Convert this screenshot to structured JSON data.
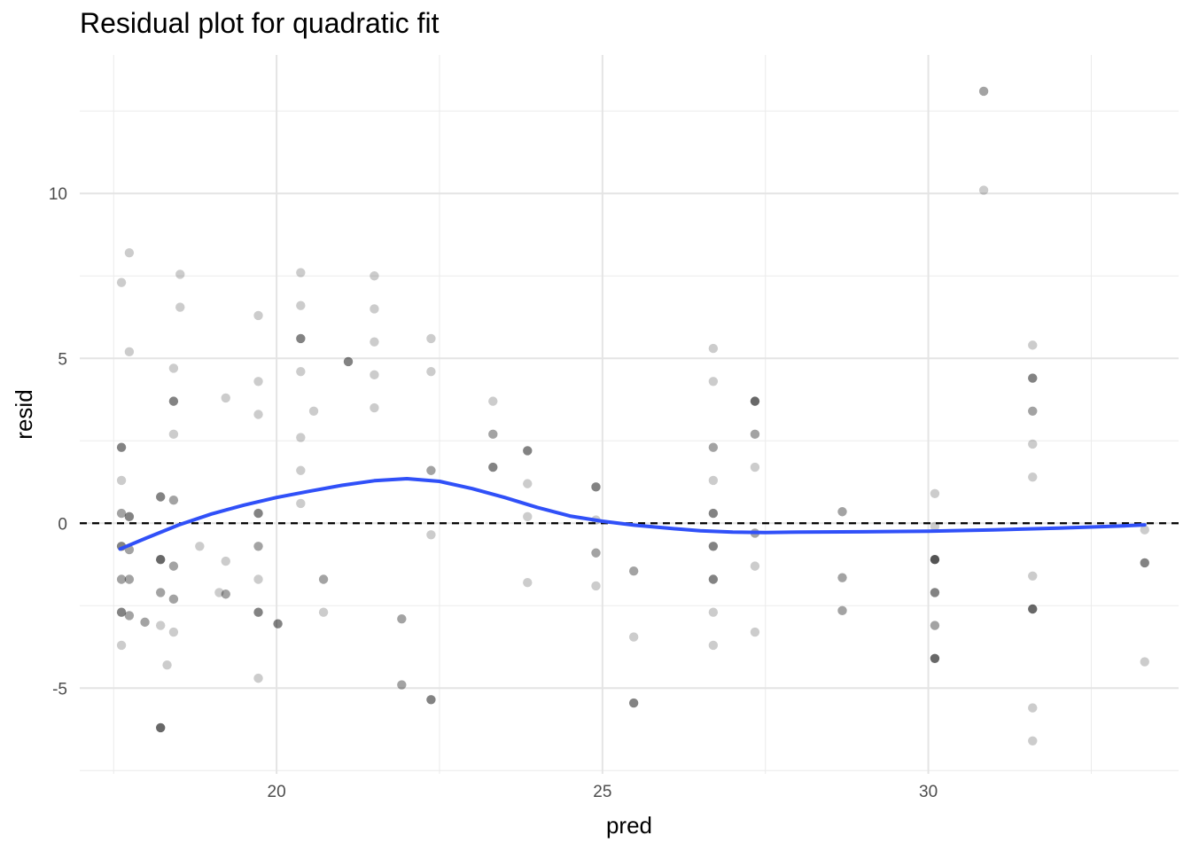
{
  "chart_data": {
    "type": "scatter",
    "title": "Residual plot for quadratic fit",
    "xlabel": "pred",
    "ylabel": "resid",
    "xlim": [
      16.98,
      33.84
    ],
    "ylim": [
      -7.6,
      14.2
    ],
    "x_ticks": [
      20,
      25,
      30
    ],
    "y_ticks": [
      -5,
      0,
      5,
      10
    ],
    "x_tick_labels": [
      "20",
      "25",
      "30"
    ],
    "y_tick_labels": [
      "-5",
      "0",
      "5",
      "10"
    ],
    "grid": true,
    "point_color": "#000000",
    "point_opacity": 0.2,
    "smooth_color": "#3050f8",
    "reference_line": {
      "y": 0,
      "style": "dashed",
      "color": "#000000"
    },
    "points": [
      {
        "x": 17.62,
        "y": 7.3,
        "n": 1
      },
      {
        "x": 17.62,
        "y": 2.3,
        "n": 3
      },
      {
        "x": 17.62,
        "y": 1.3,
        "n": 1
      },
      {
        "x": 17.62,
        "y": 0.3,
        "n": 2
      },
      {
        "x": 17.62,
        "y": -0.7,
        "n": 3
      },
      {
        "x": 17.62,
        "y": -1.7,
        "n": 2
      },
      {
        "x": 17.62,
        "y": -2.7,
        "n": 3
      },
      {
        "x": 17.62,
        "y": -3.7,
        "n": 1
      },
      {
        "x": 17.74,
        "y": 8.2,
        "n": 1
      },
      {
        "x": 17.74,
        "y": 5.2,
        "n": 1
      },
      {
        "x": 17.74,
        "y": 0.2,
        "n": 3
      },
      {
        "x": 17.74,
        "y": -0.8,
        "n": 2
      },
      {
        "x": 17.74,
        "y": -1.7,
        "n": 2
      },
      {
        "x": 17.74,
        "y": -2.8,
        "n": 2
      },
      {
        "x": 17.98,
        "y": -3.0,
        "n": 2
      },
      {
        "x": 18.22,
        "y": 0.8,
        "n": 3
      },
      {
        "x": 18.22,
        "y": -1.1,
        "n": 4
      },
      {
        "x": 18.22,
        "y": -2.1,
        "n": 2
      },
      {
        "x": 18.22,
        "y": -3.1,
        "n": 1
      },
      {
        "x": 18.22,
        "y": -6.2,
        "n": 4
      },
      {
        "x": 18.32,
        "y": -4.3,
        "n": 1
      },
      {
        "x": 18.42,
        "y": 4.7,
        "n": 1
      },
      {
        "x": 18.42,
        "y": 3.7,
        "n": 3
      },
      {
        "x": 18.42,
        "y": 2.7,
        "n": 1
      },
      {
        "x": 18.42,
        "y": 0.7,
        "n": 2
      },
      {
        "x": 18.42,
        "y": -1.3,
        "n": 2
      },
      {
        "x": 18.42,
        "y": -2.3,
        "n": 2
      },
      {
        "x": 18.42,
        "y": -3.3,
        "n": 1
      },
      {
        "x": 18.52,
        "y": 7.55,
        "n": 1
      },
      {
        "x": 18.52,
        "y": 6.55,
        "n": 1
      },
      {
        "x": 18.82,
        "y": -0.7,
        "n": 1
      },
      {
        "x": 19.12,
        "y": -2.1,
        "n": 1
      },
      {
        "x": 19.22,
        "y": 3.8,
        "n": 1
      },
      {
        "x": 19.22,
        "y": -1.15,
        "n": 1
      },
      {
        "x": 19.22,
        "y": -2.15,
        "n": 2
      },
      {
        "x": 19.72,
        "y": 6.3,
        "n": 1
      },
      {
        "x": 19.72,
        "y": 4.3,
        "n": 1
      },
      {
        "x": 19.72,
        "y": 3.3,
        "n": 1
      },
      {
        "x": 19.72,
        "y": 0.3,
        "n": 3
      },
      {
        "x": 19.72,
        "y": -0.7,
        "n": 2
      },
      {
        "x": 19.72,
        "y": -1.7,
        "n": 1
      },
      {
        "x": 19.72,
        "y": -2.7,
        "n": 3
      },
      {
        "x": 19.72,
        "y": -4.7,
        "n": 1
      },
      {
        "x": 20.02,
        "y": -3.05,
        "n": 3
      },
      {
        "x": 20.37,
        "y": 7.6,
        "n": 1
      },
      {
        "x": 20.37,
        "y": 6.6,
        "n": 1
      },
      {
        "x": 20.37,
        "y": 5.6,
        "n": 3
      },
      {
        "x": 20.37,
        "y": 4.6,
        "n": 1
      },
      {
        "x": 20.37,
        "y": 2.6,
        "n": 1
      },
      {
        "x": 20.37,
        "y": 1.6,
        "n": 1
      },
      {
        "x": 20.37,
        "y": 0.6,
        "n": 1
      },
      {
        "x": 20.57,
        "y": 3.4,
        "n": 1
      },
      {
        "x": 20.72,
        "y": -1.7,
        "n": 2
      },
      {
        "x": 20.72,
        "y": -2.7,
        "n": 1
      },
      {
        "x": 21.1,
        "y": 4.9,
        "n": 3
      },
      {
        "x": 21.5,
        "y": 7.5,
        "n": 1
      },
      {
        "x": 21.5,
        "y": 6.5,
        "n": 1
      },
      {
        "x": 21.5,
        "y": 5.5,
        "n": 1
      },
      {
        "x": 21.5,
        "y": 4.5,
        "n": 1
      },
      {
        "x": 21.5,
        "y": 3.5,
        "n": 1
      },
      {
        "x": 21.92,
        "y": -2.9,
        "n": 2
      },
      {
        "x": 21.92,
        "y": -4.9,
        "n": 2
      },
      {
        "x": 22.37,
        "y": 5.6,
        "n": 1
      },
      {
        "x": 22.37,
        "y": 4.6,
        "n": 1
      },
      {
        "x": 22.37,
        "y": 1.6,
        "n": 2
      },
      {
        "x": 22.37,
        "y": -0.35,
        "n": 1
      },
      {
        "x": 22.37,
        "y": -5.35,
        "n": 3
      },
      {
        "x": 23.32,
        "y": 3.7,
        "n": 1
      },
      {
        "x": 23.32,
        "y": 2.7,
        "n": 2
      },
      {
        "x": 23.32,
        "y": 1.7,
        "n": 3
      },
      {
        "x": 23.85,
        "y": 2.2,
        "n": 3
      },
      {
        "x": 23.85,
        "y": 1.2,
        "n": 1
      },
      {
        "x": 23.85,
        "y": 0.2,
        "n": 1
      },
      {
        "x": 23.85,
        "y": -1.8,
        "n": 1
      },
      {
        "x": 24.9,
        "y": 1.1,
        "n": 3
      },
      {
        "x": 24.9,
        "y": 0.1,
        "n": 1
      },
      {
        "x": 24.9,
        "y": -0.9,
        "n": 2
      },
      {
        "x": 24.9,
        "y": -1.9,
        "n": 1
      },
      {
        "x": 25.48,
        "y": -1.45,
        "n": 2
      },
      {
        "x": 25.48,
        "y": -3.45,
        "n": 1
      },
      {
        "x": 25.48,
        "y": -5.45,
        "n": 3
      },
      {
        "x": 26.7,
        "y": 5.3,
        "n": 1
      },
      {
        "x": 26.7,
        "y": 4.3,
        "n": 1
      },
      {
        "x": 26.7,
        "y": 2.3,
        "n": 2
      },
      {
        "x": 26.7,
        "y": 1.3,
        "n": 1
      },
      {
        "x": 26.7,
        "y": 0.3,
        "n": 3
      },
      {
        "x": 26.7,
        "y": -0.7,
        "n": 3
      },
      {
        "x": 26.7,
        "y": -1.7,
        "n": 3
      },
      {
        "x": 26.7,
        "y": -2.7,
        "n": 1
      },
      {
        "x": 26.7,
        "y": -3.7,
        "n": 1
      },
      {
        "x": 27.34,
        "y": 3.7,
        "n": 4
      },
      {
        "x": 27.34,
        "y": 2.7,
        "n": 2
      },
      {
        "x": 27.34,
        "y": 1.7,
        "n": 1
      },
      {
        "x": 27.34,
        "y": -0.3,
        "n": 2
      },
      {
        "x": 27.34,
        "y": -1.3,
        "n": 1
      },
      {
        "x": 27.34,
        "y": -3.3,
        "n": 1
      },
      {
        "x": 28.68,
        "y": 0.35,
        "n": 2
      },
      {
        "x": 28.68,
        "y": -1.65,
        "n": 2
      },
      {
        "x": 28.68,
        "y": -2.65,
        "n": 2
      },
      {
        "x": 30.1,
        "y": 0.9,
        "n": 1
      },
      {
        "x": 30.1,
        "y": -0.1,
        "n": 1
      },
      {
        "x": 30.1,
        "y": -1.1,
        "n": 5
      },
      {
        "x": 30.1,
        "y": -2.1,
        "n": 3
      },
      {
        "x": 30.1,
        "y": -3.1,
        "n": 2
      },
      {
        "x": 30.1,
        "y": -4.1,
        "n": 4
      },
      {
        "x": 30.85,
        "y": 13.1,
        "n": 2
      },
      {
        "x": 30.85,
        "y": 10.1,
        "n": 1
      },
      {
        "x": 31.6,
        "y": 5.4,
        "n": 1
      },
      {
        "x": 31.6,
        "y": 4.4,
        "n": 3
      },
      {
        "x": 31.6,
        "y": 3.4,
        "n": 2
      },
      {
        "x": 31.6,
        "y": 2.4,
        "n": 1
      },
      {
        "x": 31.6,
        "y": 1.4,
        "n": 1
      },
      {
        "x": 31.6,
        "y": -1.6,
        "n": 1
      },
      {
        "x": 31.6,
        "y": -2.6,
        "n": 4
      },
      {
        "x": 31.6,
        "y": -5.6,
        "n": 1
      },
      {
        "x": 31.6,
        "y": -6.6,
        "n": 1
      },
      {
        "x": 33.32,
        "y": -0.2,
        "n": 1
      },
      {
        "x": 33.32,
        "y": -1.2,
        "n": 3
      },
      {
        "x": 33.32,
        "y": -4.2,
        "n": 1
      }
    ],
    "smooth_line": [
      {
        "x": 17.6,
        "y": -0.78
      },
      {
        "x": 18.0,
        "y": -0.45
      },
      {
        "x": 18.5,
        "y": -0.05
      },
      {
        "x": 19.0,
        "y": 0.28
      },
      {
        "x": 19.5,
        "y": 0.55
      },
      {
        "x": 20.0,
        "y": 0.78
      },
      {
        "x": 20.5,
        "y": 0.97
      },
      {
        "x": 21.0,
        "y": 1.15
      },
      {
        "x": 21.5,
        "y": 1.29
      },
      {
        "x": 22.0,
        "y": 1.35
      },
      {
        "x": 22.5,
        "y": 1.27
      },
      {
        "x": 23.0,
        "y": 1.05
      },
      {
        "x": 23.5,
        "y": 0.78
      },
      {
        "x": 24.0,
        "y": 0.48
      },
      {
        "x": 24.5,
        "y": 0.22
      },
      {
        "x": 25.0,
        "y": 0.06
      },
      {
        "x": 25.5,
        "y": -0.06
      },
      {
        "x": 26.0,
        "y": -0.15
      },
      {
        "x": 26.5,
        "y": -0.23
      },
      {
        "x": 27.0,
        "y": -0.27
      },
      {
        "x": 27.5,
        "y": -0.28
      },
      {
        "x": 28.0,
        "y": -0.27
      },
      {
        "x": 29.0,
        "y": -0.26
      },
      {
        "x": 30.0,
        "y": -0.24
      },
      {
        "x": 31.0,
        "y": -0.2
      },
      {
        "x": 32.0,
        "y": -0.15
      },
      {
        "x": 33.0,
        "y": -0.08
      },
      {
        "x": 33.32,
        "y": -0.05
      }
    ]
  }
}
